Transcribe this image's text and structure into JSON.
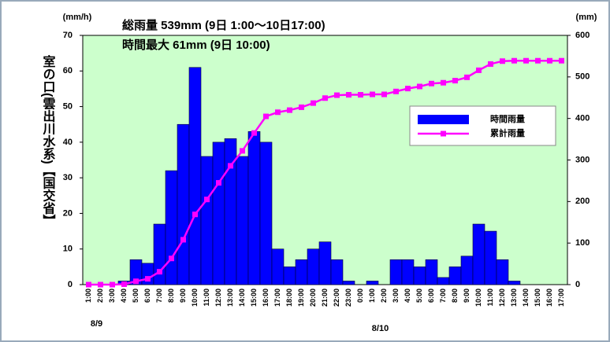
{
  "chart_data": {
    "type": "bar-line",
    "title": "総雨量  539mm (9日 1:00～10日17:00)",
    "subtitle": "時間最大  61mm (9日  10:00)",
    "y_label": "(mm/h)",
    "y2_label": "(mm)",
    "station_label": "室の口(雲出川水系)【国交省】",
    "date_labels": [
      "8/9",
      "8/10"
    ],
    "categories": [
      "1:00",
      "2:00",
      "3:00",
      "4:00",
      "5:00",
      "6:00",
      "7:00",
      "8:00",
      "9:00",
      "10:00",
      "11:00",
      "12:00",
      "13:00",
      "14:00",
      "15:00",
      "16:00",
      "17:00",
      "18:00",
      "19:00",
      "20:00",
      "21:00",
      "22:00",
      "23:00",
      "0:00",
      "1:00",
      "2:00",
      "3:00",
      "4:00",
      "5:00",
      "6:00",
      "7:00",
      "8:00",
      "9:00",
      "10:00",
      "11:00",
      "12:00",
      "13:00",
      "14:00",
      "15:00",
      "16:00",
      "17:00"
    ],
    "series": [
      {
        "name": "時間雨量",
        "type": "bar",
        "color": "#0000ff",
        "values": [
          0,
          0,
          0,
          1,
          7,
          6,
          17,
          32,
          45,
          61,
          36,
          40,
          41,
          36,
          43,
          40,
          10,
          5,
          7,
          10,
          12,
          7,
          1,
          0,
          1,
          0,
          7,
          7,
          5,
          7,
          2,
          5,
          8,
          17,
          15,
          7,
          1,
          0,
          0,
          0,
          0
        ]
      },
      {
        "name": "累計雨量",
        "type": "line",
        "axis": "y2",
        "color": "#ff00ff",
        "values": [
          0,
          0,
          0,
          1,
          8,
          14,
          31,
          63,
          108,
          169,
          205,
          245,
          286,
          322,
          365,
          405,
          415,
          420,
          427,
          437,
          449,
          456,
          457,
          457,
          458,
          458,
          465,
          472,
          477,
          484,
          486,
          491,
          499,
          516,
          531,
          538,
          539,
          539,
          539,
          539,
          539
        ]
      }
    ],
    "ylim": [
      0,
      70
    ],
    "yticks": [
      0,
      10,
      20,
      30,
      40,
      50,
      60,
      70
    ],
    "y2lim": [
      0,
      600
    ],
    "y2ticks": [
      0,
      100,
      200,
      300,
      400,
      500,
      600
    ],
    "legend": "upper right",
    "plot_background": "#ccffcc"
  }
}
